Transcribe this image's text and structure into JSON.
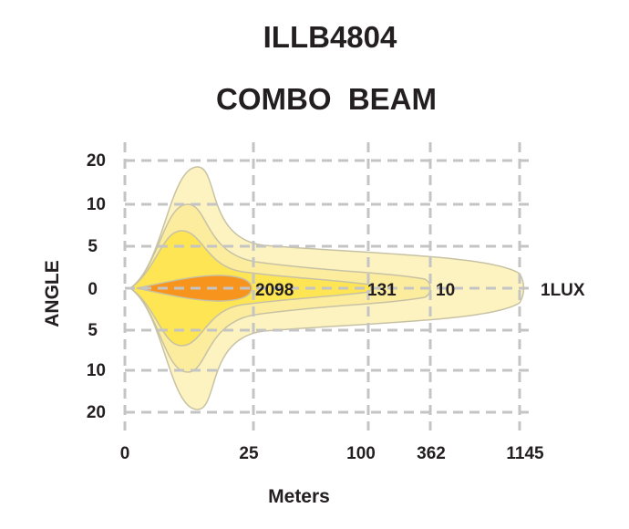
{
  "chart_data": {
    "type": "area",
    "title": "ILLB4804",
    "subtitle": "COMBO  BEAM",
    "xlabel": "Meters",
    "ylabel": "ANGLE",
    "x_ticks": [
      "0",
      "25",
      "100",
      "362",
      "1145"
    ],
    "y_ticks_upper": [
      "20",
      "10",
      "5"
    ],
    "y_center_tick": "0",
    "y_ticks_lower": [
      "5",
      "10",
      "20"
    ],
    "grid": true,
    "series": [
      {
        "lux_label": "1LUX",
        "reach": 1145,
        "color": "#fdf3c0"
      },
      {
        "lux_label": "10",
        "reach": 362,
        "color": "#fcec9e"
      },
      {
        "lux_label": "131",
        "reach": 100,
        "color": "#fde553"
      },
      {
        "lux_label": "2098",
        "reach": 25,
        "color": "#f7941d"
      }
    ],
    "colors": {
      "outline": "#c8c2a4",
      "grid": "#c4c4c4",
      "text": "#231f20"
    }
  }
}
